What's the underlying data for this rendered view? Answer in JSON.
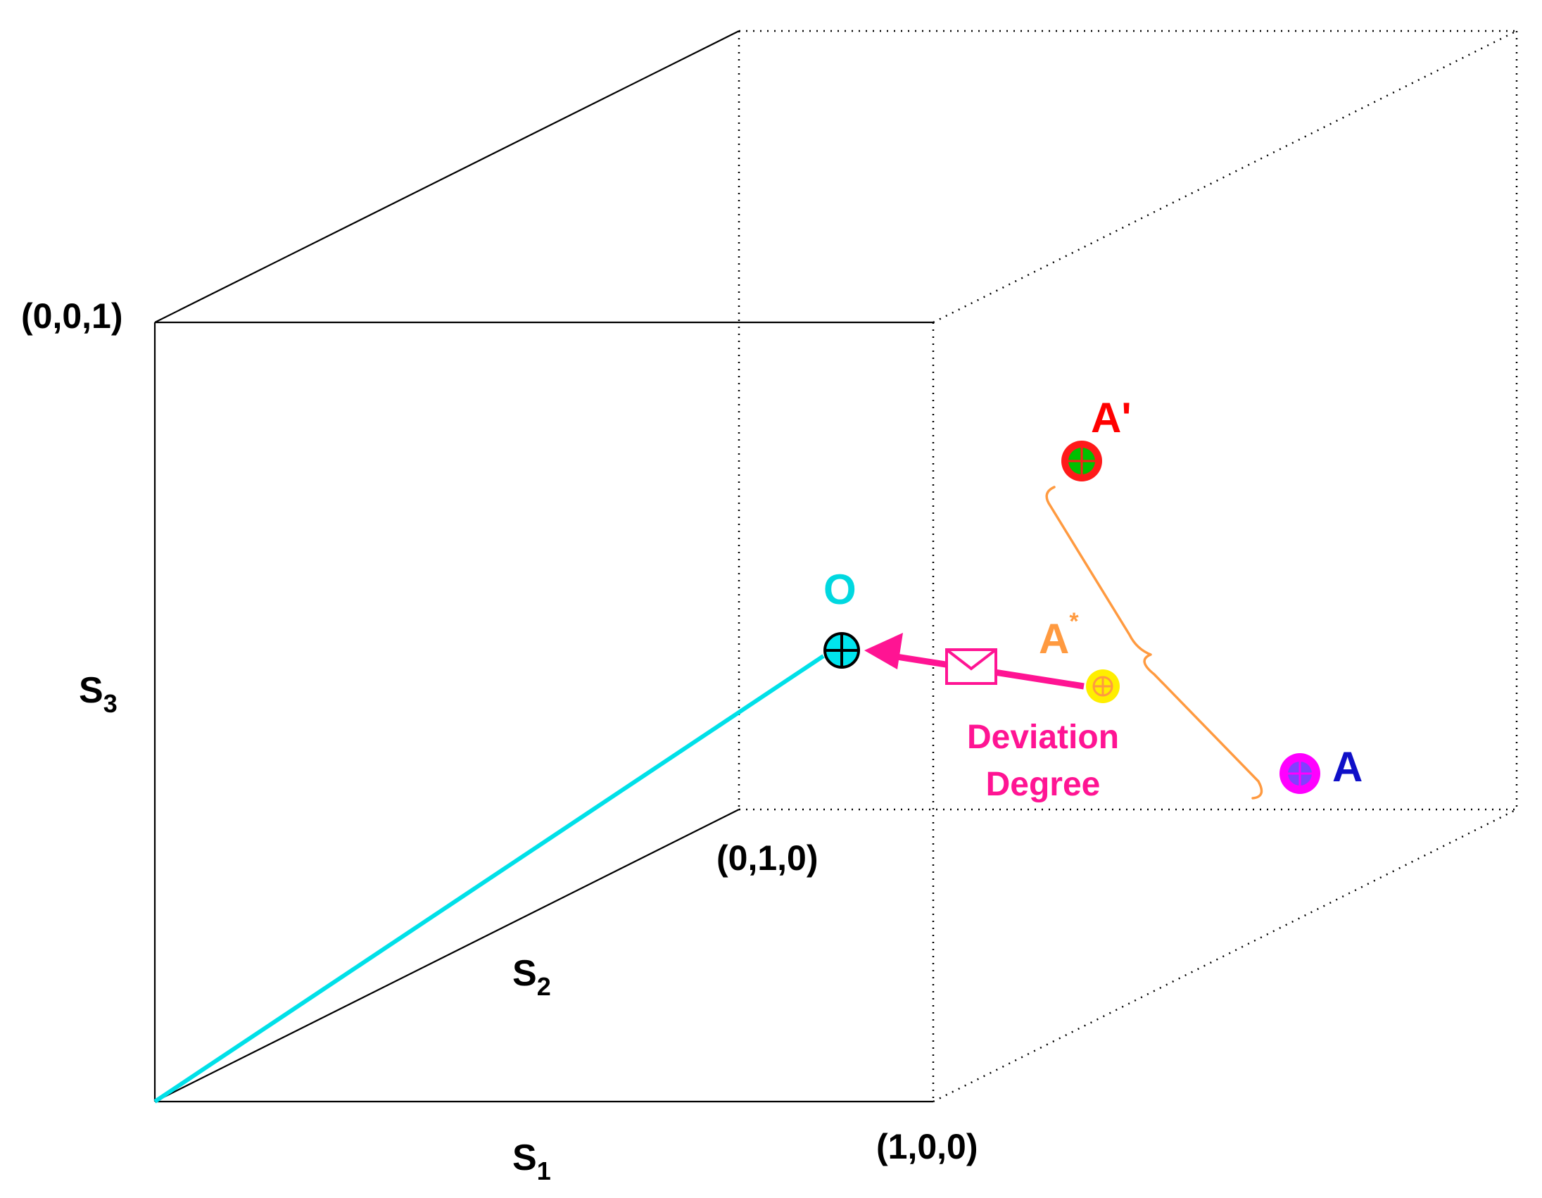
{
  "colors": {
    "edge": "#000000",
    "line_o": "#00e0e8",
    "arrow": "#ff1493",
    "brace": "#ff9a40",
    "label_o": "#00d8e0",
    "label_astar": "#ff9a40",
    "label_aprime": "#ff0000",
    "label_a": "#1010c8",
    "deviation_text": "#ff1493",
    "point_o_fill": "#00e5ee",
    "point_astar_fill": "#ffee00",
    "point_aprime_fill": "#00c000",
    "point_aprime_ring": "#ff1a1a",
    "point_a_fill": "#8040ff",
    "point_a_ring": "#ff00ff"
  },
  "vertex_labels": {
    "v001": "(0,0,1)",
    "v010": "(0,1,0)",
    "v100": "(1,0,0)"
  },
  "axis_labels": {
    "s1": {
      "base": "S",
      "sub": "1"
    },
    "s2": {
      "base": "S",
      "sub": "2"
    },
    "s3": {
      "base": "S",
      "sub": "3"
    }
  },
  "points": {
    "o": {
      "label": "O"
    },
    "astar": {
      "label": "A",
      "sup": "*"
    },
    "aprime": {
      "label": "A'"
    },
    "a": {
      "label": "A"
    }
  },
  "deviation": {
    "line1": "Deviation",
    "line2": "Degree",
    "icon": "envelope-icon"
  }
}
